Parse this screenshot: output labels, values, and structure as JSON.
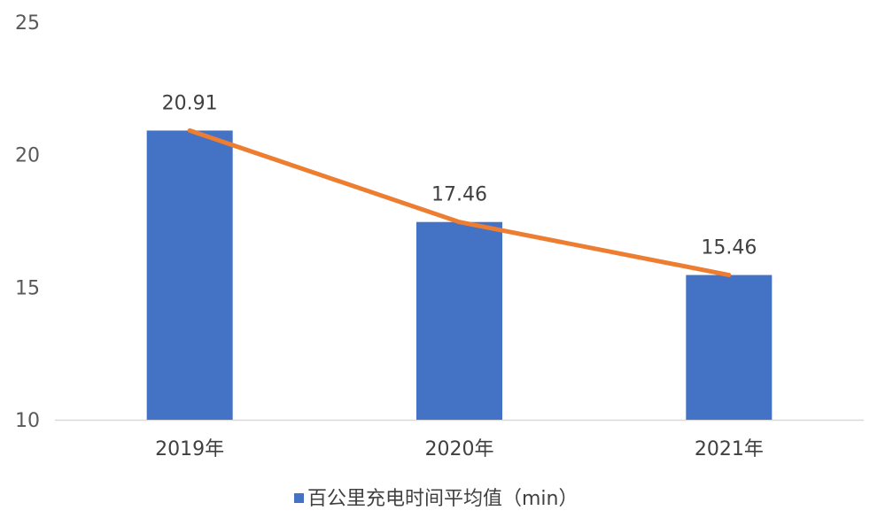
{
  "chart_data": {
    "type": "bar",
    "categories": [
      "2019年",
      "2020年",
      "2021年"
    ],
    "series": [
      {
        "name": "百公里充电时间平均值（min）",
        "type": "bar",
        "values": [
          20.91,
          17.46,
          15.46
        ],
        "color": "#4472C4"
      },
      {
        "type": "line",
        "values": [
          20.91,
          17.46,
          15.46
        ],
        "color": "#ED7D31"
      }
    ],
    "data_labels": [
      "20.91",
      "17.46",
      "15.46"
    ],
    "yticks": [
      10,
      15,
      20,
      25
    ],
    "ylim": [
      10,
      25
    ],
    "grid": false,
    "legend": "bottom-center",
    "title": "",
    "xlabel": "",
    "ylabel": ""
  }
}
